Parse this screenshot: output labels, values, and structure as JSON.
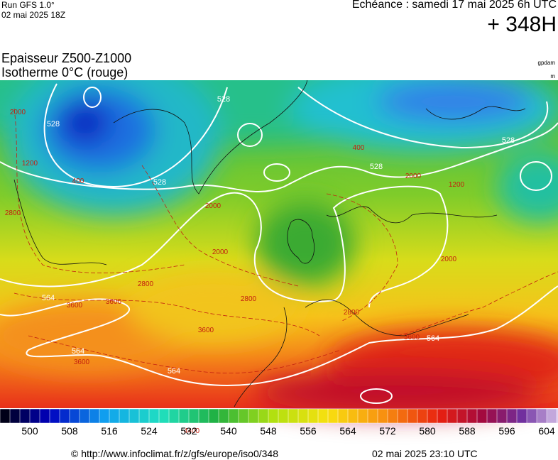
{
  "header": {
    "run": "Run GFS 1.0°",
    "run_date": "02 mai 2025 18Z",
    "echeance": "Echéance : samedi 17 mai 2025 6h UTC",
    "horizon": "+ 348H"
  },
  "titles": {
    "line1": "Epaisseur Z500-Z1000",
    "line2": "Isotherme 0°C (rouge)"
  },
  "units": {
    "thickness": "gpdam",
    "height": "m"
  },
  "map": {
    "thickness_labels": [
      528,
      528,
      528,
      528,
      528,
      564,
      564,
      564,
      564
    ],
    "isotherm_labels": [
      2000,
      1200,
      2800,
      400,
      2000,
      2000,
      2800,
      3600,
      3600,
      3600,
      3600,
      4400,
      2800,
      2800,
      3600,
      2000,
      1200,
      400,
      2000
    ]
  },
  "colorbar": {
    "labels": [
      500,
      508,
      516,
      524,
      532,
      540,
      548,
      556,
      564,
      572,
      580,
      588,
      596,
      604
    ]
  },
  "footer": {
    "source": "© http://www.infoclimat.fr/z/gfs/europe/iso0/348",
    "timestamp": "02 mai 2025 23:10 UTC"
  }
}
